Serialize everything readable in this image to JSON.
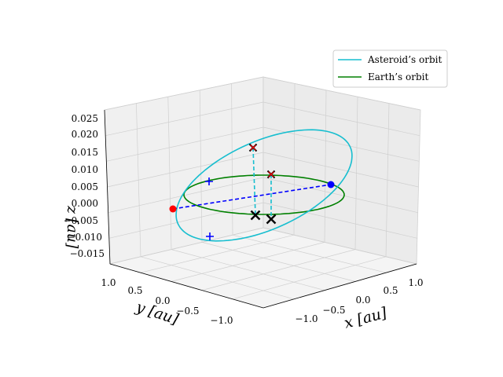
{
  "chart_data": {
    "type": "line3d",
    "title": "",
    "axes": {
      "x": {
        "label": "x [au]",
        "ticks": [
          "−1.0",
          "−0.5",
          "0.0",
          "0.5",
          "1.0"
        ]
      },
      "y": {
        "label": "y [au]",
        "ticks": [
          "1.0",
          "0.5",
          "0.0",
          "−0.5",
          "−1.0"
        ]
      },
      "z": {
        "label": "z [au]",
        "ticks": [
          "0.025",
          "0.020",
          "0.015",
          "0.010",
          "0.005",
          "0.000",
          "−0.005",
          "−0.010",
          "−0.015"
        ]
      },
      "ranges": {
        "x": [
          -1.3,
          1.3
        ],
        "y": [
          -1.3,
          1.3
        ],
        "z": [
          -0.017,
          0.027
        ]
      }
    },
    "grid": true,
    "legend": {
      "placement": "top-right",
      "entries": [
        {
          "label": "Asteroid’s orbit",
          "color": "#17becf"
        },
        {
          "label": "Earth’s orbit",
          "color": "#008000"
        }
      ]
    },
    "series": [
      {
        "name": "Asteroid’s orbit",
        "color": "#17becf",
        "kind": "ellipse",
        "semi_major": 1.2,
        "semi_minor": 0.75,
        "inclination_z_amp": 0.025,
        "z_offset": 0.006
      },
      {
        "name": "Earth’s orbit",
        "color": "#008000",
        "kind": "circle",
        "radius": 1.0,
        "z": 0.0
      }
    ],
    "markers": [
      {
        "kind": "dot",
        "color": "#ff0000",
        "point": [
          -1.0,
          0.5,
          0.0
        ]
      },
      {
        "kind": "dot",
        "color": "#0000ff",
        "point": [
          1.0,
          -0.5,
          0.005
        ]
      },
      {
        "kind": "plus",
        "color": "#0000ff",
        "point": [
          -0.65,
          0.65,
          0.012
        ]
      },
      {
        "kind": "plus",
        "color": "#0000ff",
        "point": [
          -0.2,
          0.9,
          -0.012
        ]
      },
      {
        "kind": "x",
        "color": "#ff0000",
        "point": [
          0.15,
          0.1,
          0.022
        ]
      },
      {
        "kind": "x",
        "color": "#ff0000",
        "point": [
          0.45,
          -0.15,
          0.013
        ]
      },
      {
        "kind": "x",
        "color": "#000000",
        "point": [
          0.15,
          0.1,
          -0.005
        ]
      },
      {
        "kind": "x",
        "color": "#000000",
        "point": [
          0.45,
          -0.15,
          -0.005
        ]
      }
    ]
  }
}
